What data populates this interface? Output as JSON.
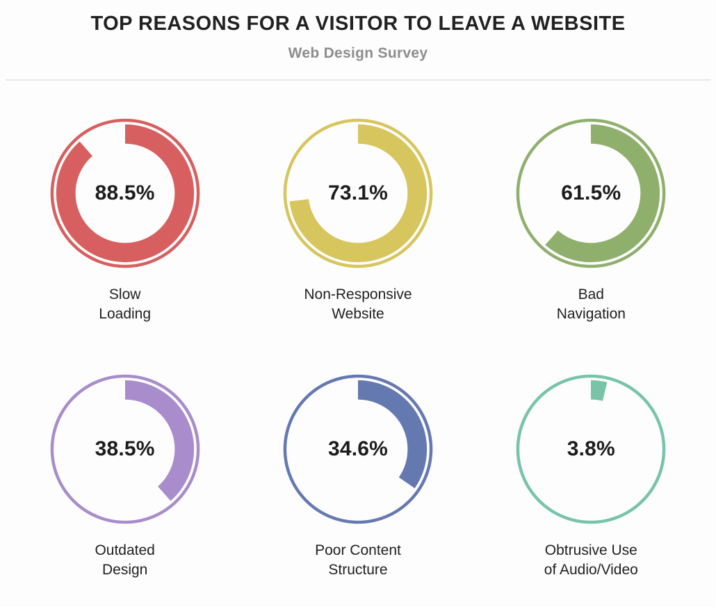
{
  "header": {
    "title": "TOP REASONS FOR A VISITOR TO LEAVE A WEBSITE",
    "subtitle": "Web Design Survey"
  },
  "chart_data": {
    "type": "pie",
    "variant": "donut-gauge-grid",
    "title": "TOP REASONS FOR A VISITOR TO LEAVE A WEBSITE",
    "subtitle": "Web Design Survey",
    "layout": {
      "rows": 2,
      "cols": 3,
      "legend": "none",
      "grid": "off"
    },
    "units": "%",
    "value_range": [
      0,
      100
    ],
    "arc_start": "12-o-clock",
    "arc_direction": "clockwise",
    "categories": [
      "Slow Loading",
      "Non-Responsive Website",
      "Bad Navigation",
      "Outdated Design",
      "Poor Content Structure",
      "Obtrusive Use of Audio/Video"
    ],
    "values": [
      88.5,
      73.1,
      61.5,
      38.5,
      34.6,
      3.8
    ],
    "items": [
      {
        "label": "Slow Loading",
        "label_lines": [
          "Slow",
          "Loading"
        ],
        "value": 88.5,
        "value_label": "88.5%",
        "color": "#D75F5F"
      },
      {
        "label": "Non-Responsive Website",
        "label_lines": [
          "Non-Responsive",
          "Website"
        ],
        "value": 73.1,
        "value_label": "73.1%",
        "color": "#D7C55D"
      },
      {
        "label": "Bad Navigation",
        "label_lines": [
          "Bad",
          "Navigation"
        ],
        "value": 61.5,
        "value_label": "61.5%",
        "color": "#8FB06D"
      },
      {
        "label": "Outdated Design",
        "label_lines": [
          "Outdated",
          "Design"
        ],
        "value": 38.5,
        "value_label": "38.5%",
        "color": "#A98CCB"
      },
      {
        "label": "Poor Content Structure",
        "label_lines": [
          "Poor Content",
          "Structure"
        ],
        "value": 34.6,
        "value_label": "34.6%",
        "color": "#6579B1"
      },
      {
        "label": "Obtrusive Use of Audio/Video",
        "label_lines": [
          "Obtrusive Use",
          "of Audio/Video"
        ],
        "value": 3.8,
        "value_label": "3.8%",
        "color": "#77C4A8"
      }
    ],
    "colors": {
      "text_dark": "#1c1c1c",
      "subtitle_gray": "#8c8c8c",
      "divider": "#e7e7e7",
      "background": "#fdfdfd"
    }
  }
}
